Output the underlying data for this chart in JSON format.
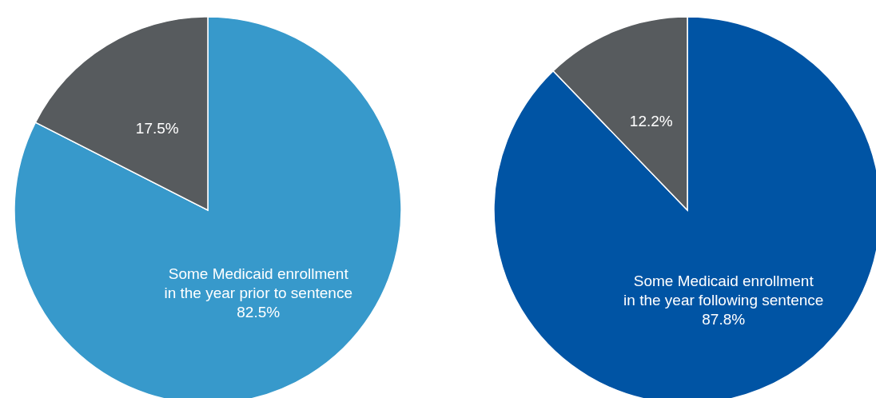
{
  "chart_data": [
    {
      "type": "pie",
      "categories": [
        "Some Medicaid enrollment\nin the year prior to sentence",
        null
      ],
      "values": [
        82.5,
        17.5
      ],
      "colors": [
        "#3799cb",
        "#575b5e"
      ],
      "value_labels": [
        "82.5%",
        "17.5%"
      ],
      "legend": false
    },
    {
      "type": "pie",
      "categories": [
        "Some Medicaid enrollment\nin the year following sentence",
        null
      ],
      "values": [
        87.8,
        12.2
      ],
      "colors": [
        "#0054a4",
        "#575b5e"
      ],
      "value_labels": [
        "87.8%",
        "12.2%"
      ],
      "legend": false
    }
  ]
}
